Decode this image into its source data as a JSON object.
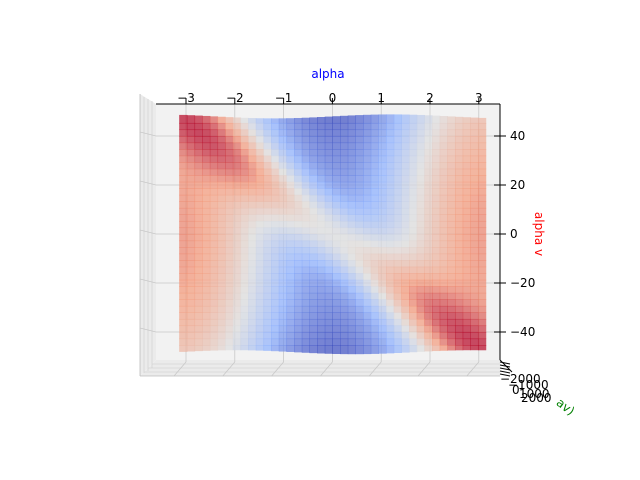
{
  "chart_data": {
    "type": "surface",
    "view": "top-down 3D surface",
    "colormap": "coolwarm",
    "grid": true,
    "xlabel": "alpha",
    "ylabel": "alpha v",
    "zlabel": "av)",
    "xlabel_color": "#0000ff",
    "ylabel_color": "#ff0000",
    "zlabel_color": "#008000",
    "x_ticks": [
      -3,
      -2,
      -1,
      0,
      1,
      2,
      3
    ],
    "x_tick_labels": [
      "−3",
      "−2",
      "−1",
      "0",
      "1",
      "2",
      "3"
    ],
    "y_ticks": [
      40,
      20,
      0,
      -20,
      -40
    ],
    "y_tick_labels": [
      "40",
      "20",
      "0",
      "−20",
      "−40"
    ],
    "z_tick_labels": [
      "−2000",
      "−1000",
      "0",
      "1000",
      "2000"
    ],
    "xlim": [
      -3.14,
      3.14
    ],
    "ylim": [
      -50,
      50
    ]
  }
}
